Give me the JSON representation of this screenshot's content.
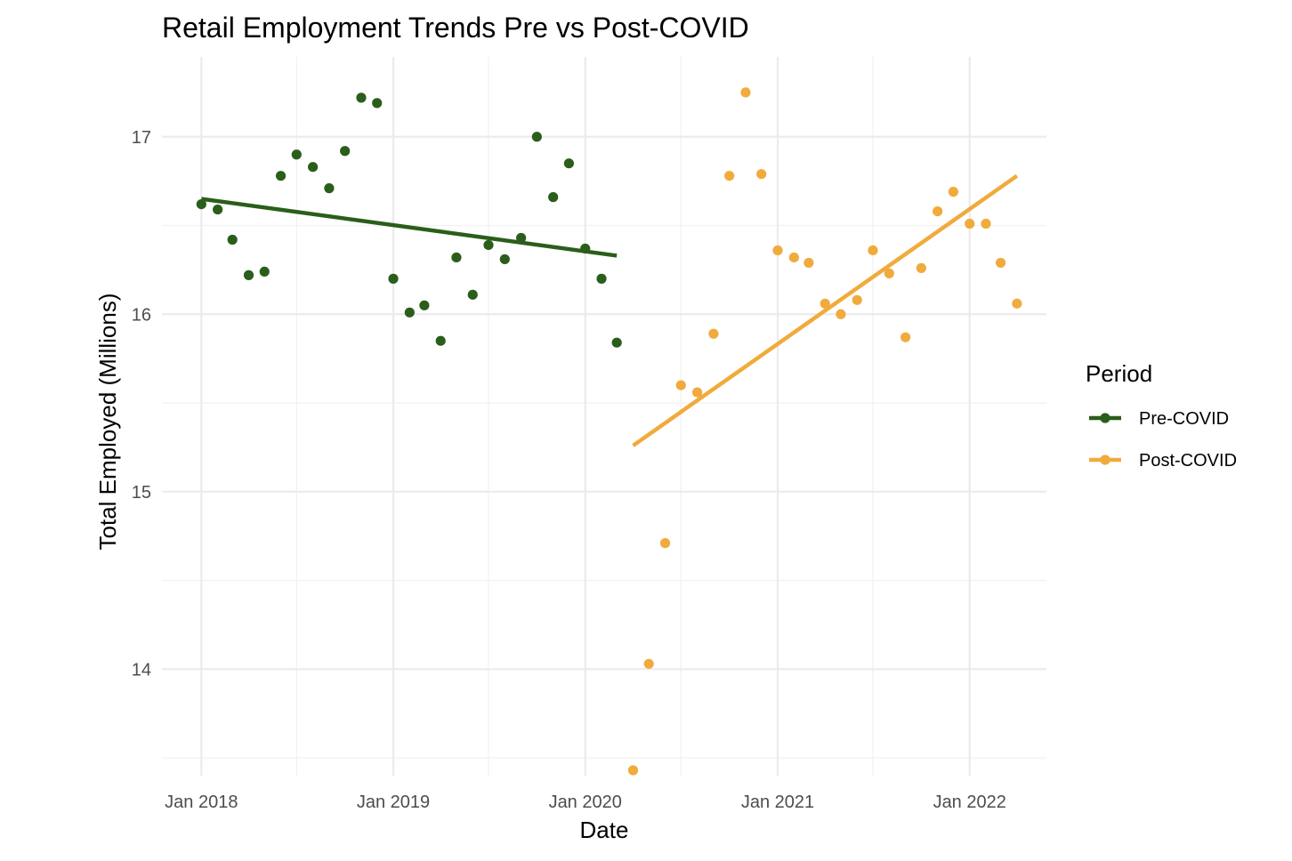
{
  "chart_data": {
    "type": "scatter",
    "title": "Retail Employment Trends Pre vs Post-COVID",
    "xlabel": "Date",
    "ylabel": "Total Employed (Millions)",
    "xlim": [
      "2017-10-18",
      "2022-05-27"
    ],
    "ylim": [
      13.4,
      17.45
    ],
    "x_ticks": [
      {
        "date": "2018-01-01",
        "label": "Jan 2018"
      },
      {
        "date": "2019-01-01",
        "label": "Jan 2019"
      },
      {
        "date": "2020-01-01",
        "label": "Jan 2020"
      },
      {
        "date": "2021-01-01",
        "label": "Jan 2021"
      },
      {
        "date": "2022-01-01",
        "label": "Jan 2022"
      }
    ],
    "x_minor_ticks": [
      "2018-07-01",
      "2019-07-01",
      "2020-07-01",
      "2021-07-01"
    ],
    "y_ticks": [
      14,
      15,
      16,
      17
    ],
    "y_minor_ticks": [
      13.5,
      14.5,
      15.5,
      16.5
    ],
    "grid": true,
    "legend": {
      "title": "Period",
      "position": "right"
    },
    "series": [
      {
        "name": "Pre-COVID",
        "color": "#2a5e1a",
        "x": [
          "2018-01-01",
          "2018-02-01",
          "2018-03-01",
          "2018-04-01",
          "2018-05-01",
          "2018-06-01",
          "2018-07-01",
          "2018-08-01",
          "2018-09-01",
          "2018-10-01",
          "2018-11-01",
          "2018-12-01",
          "2019-01-01",
          "2019-02-01",
          "2019-03-01",
          "2019-04-01",
          "2019-05-01",
          "2019-06-01",
          "2019-07-01",
          "2019-08-01",
          "2019-09-01",
          "2019-10-01",
          "2019-11-01",
          "2019-12-01",
          "2020-01-01",
          "2020-02-01",
          "2020-03-01"
        ],
        "y": [
          16.62,
          16.59,
          16.42,
          16.22,
          16.24,
          16.78,
          16.9,
          16.83,
          16.71,
          16.92,
          17.22,
          17.19,
          16.2,
          16.01,
          16.05,
          15.85,
          16.32,
          16.11,
          16.39,
          16.31,
          16.43,
          17.0,
          16.66,
          16.85,
          16.37,
          16.2,
          15.84
        ],
        "trend": {
          "x": [
            "2018-01-01",
            "2020-03-01"
          ],
          "y": [
            16.65,
            16.33
          ]
        }
      },
      {
        "name": "Post-COVID",
        "color": "#f0ab3c",
        "x": [
          "2020-04-01",
          "2020-05-01",
          "2020-06-01",
          "2020-07-01",
          "2020-08-01",
          "2020-09-01",
          "2020-10-01",
          "2020-11-01",
          "2020-12-01",
          "2021-01-01",
          "2021-02-01",
          "2021-03-01",
          "2021-04-01",
          "2021-05-01",
          "2021-06-01",
          "2021-07-01",
          "2021-08-01",
          "2021-09-01",
          "2021-10-01",
          "2021-11-01",
          "2021-12-01",
          "2022-01-01",
          "2022-02-01",
          "2022-03-01",
          "2022-04-01"
        ],
        "y": [
          13.43,
          14.03,
          14.71,
          15.6,
          15.56,
          15.89,
          16.78,
          17.25,
          16.79,
          16.36,
          16.32,
          16.29,
          16.06,
          16.0,
          16.08,
          16.36,
          16.23,
          15.87,
          16.26,
          16.58,
          16.69,
          16.51,
          16.51,
          16.29,
          16.06
        ],
        "trend": {
          "x": [
            "2020-04-01",
            "2022-04-01"
          ],
          "y": [
            15.26,
            16.78
          ]
        }
      }
    ]
  }
}
